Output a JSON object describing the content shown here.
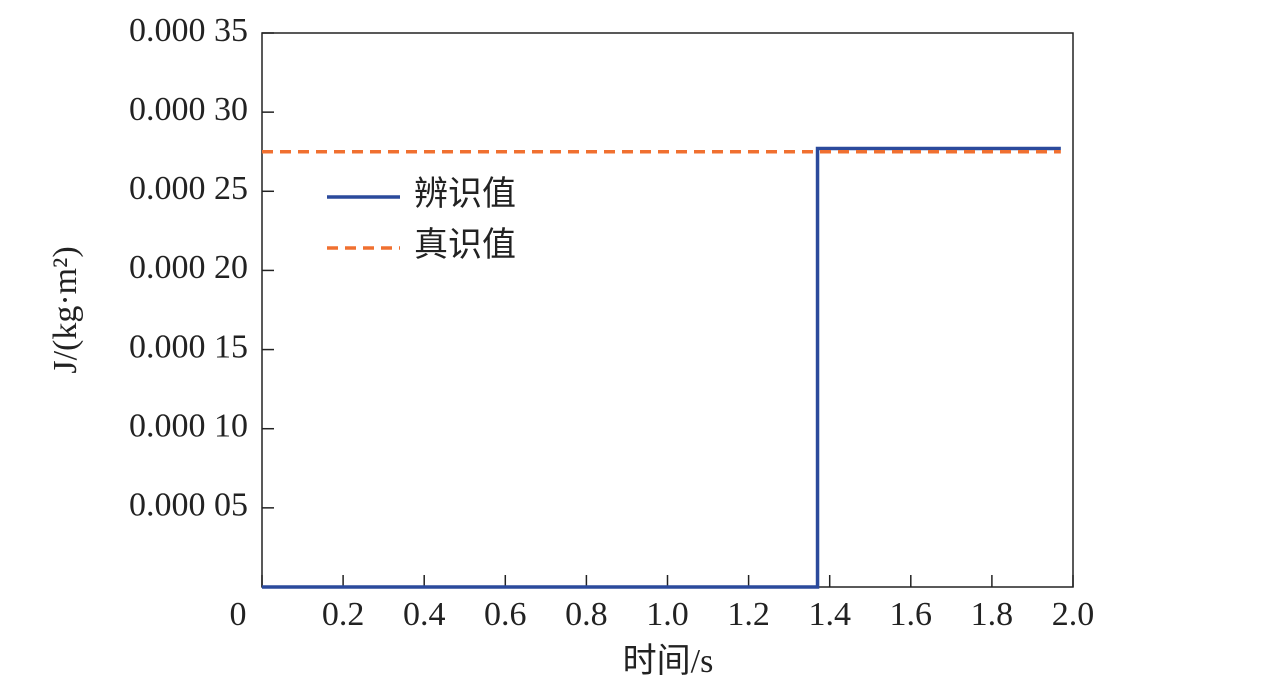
{
  "chart_data": {
    "type": "line",
    "xlabel": "时间/s",
    "ylabel": "J/(kg·m²)",
    "xlim": [
      0,
      2
    ],
    "xticks": [
      0,
      0.2,
      0.4,
      0.6,
      0.8,
      {
        "value": 1,
        "label": "1.0"
      },
      1.2,
      1.4,
      1.6,
      1.8,
      {
        "value": 2,
        "label": "2.0"
      }
    ],
    "ylim": [
      0,
      0.00035
    ],
    "yticks": [
      {
        "value": 5e-05,
        "label": "0.000 05"
      },
      {
        "value": 0.0001,
        "label": "0.000 10"
      },
      {
        "value": 0.00015,
        "label": "0.000 15"
      },
      {
        "value": 0.0002,
        "label": "0.000 20"
      },
      {
        "value": 0.00025,
        "label": "0.000 25"
      },
      {
        "value": 0.0003,
        "label": "0.000 30"
      },
      {
        "value": 0.00035,
        "label": "0.000 35"
      }
    ],
    "grid": false,
    "legend": "upper left",
    "series": [
      {
        "name": "辨识值",
        "color": "#2b4a9c",
        "dash": false,
        "x": [
          0,
          1.37,
          1.37,
          1.97
        ],
        "values": [
          0,
          0,
          0.000277,
          0.000277
        ]
      },
      {
        "name": "真识值",
        "color": "#f07030",
        "dash": true,
        "x": [
          0,
          1.97
        ],
        "values": [
          0.000275,
          0.000275
        ]
      }
    ]
  }
}
